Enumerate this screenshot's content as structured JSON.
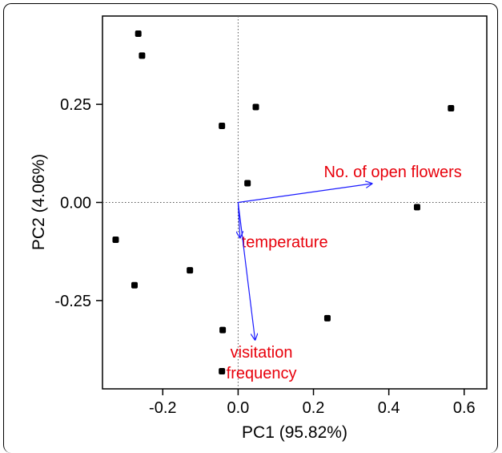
{
  "chart_data": {
    "type": "scatter",
    "title": "",
    "xlabel": "PC1 (95.82%)",
    "ylabel": "PC2 (4.06%)",
    "xlim": [
      -0.36,
      0.66
    ],
    "ylim": [
      -0.475,
      0.475
    ],
    "xticks": [
      -0.2,
      0.0,
      0.2,
      0.4,
      0.6
    ],
    "xtick_labels": [
      "-0.2",
      "0.0",
      "0.2",
      "0.4",
      "0.6"
    ],
    "yticks": [
      -0.25,
      0.0,
      0.25
    ],
    "ytick_labels": [
      "-0.25",
      "0.00",
      "0.25"
    ],
    "reference_lines": {
      "x": 0,
      "y": 0,
      "style": "dotted"
    },
    "grid": false,
    "points": [
      {
        "x": -0.265,
        "y": 0.43
      },
      {
        "x": -0.255,
        "y": 0.374
      },
      {
        "x": 0.047,
        "y": 0.243
      },
      {
        "x": -0.043,
        "y": 0.195
      },
      {
        "x": 0.565,
        "y": 0.24
      },
      {
        "x": 0.025,
        "y": 0.049
      },
      {
        "x": 0.475,
        "y": -0.012
      },
      {
        "x": -0.325,
        "y": -0.095
      },
      {
        "x": -0.128,
        "y": -0.173
      },
      {
        "x": -0.275,
        "y": -0.211
      },
      {
        "x": 0.237,
        "y": -0.295
      },
      {
        "x": -0.041,
        "y": -0.325
      },
      {
        "x": -0.043,
        "y": -0.43
      }
    ],
    "loadings": [
      {
        "label": "No. of open flowers",
        "x": 0.355,
        "y": 0.048
      },
      {
        "label": "temperature",
        "x": 0.005,
        "y": -0.09
      },
      {
        "label": "visitation frequency",
        "x": 0.045,
        "y": -0.35
      }
    ],
    "colors": {
      "points": "#000000",
      "arrows": "#1a1aff",
      "loading_labels": "#e8000b",
      "axes": "#000000"
    }
  }
}
